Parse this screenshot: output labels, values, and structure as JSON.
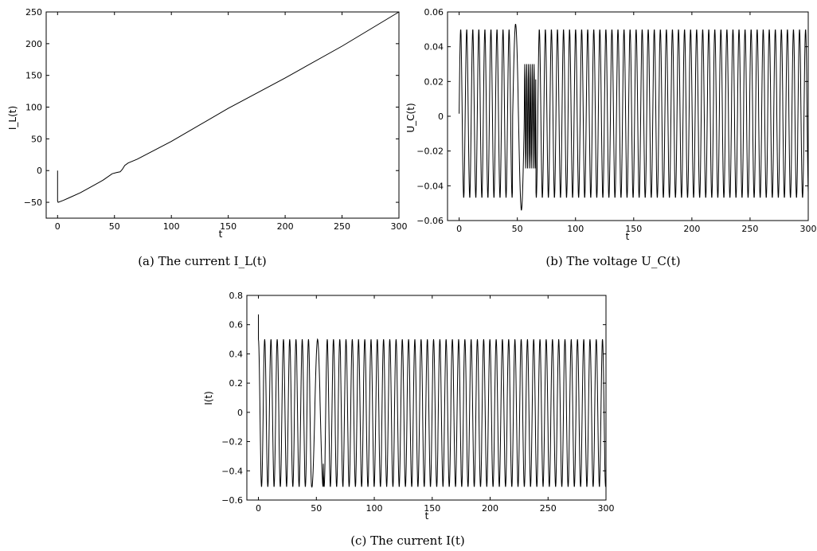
{
  "chart_data": [
    {
      "type": "line",
      "caption": "(a) The current I_L(t)",
      "xlabel": "t",
      "ylabel": "I_L(t)",
      "xlim": [
        -10,
        300
      ],
      "ylim": [
        -75,
        250
      ],
      "xticks": [
        "0",
        "50",
        "100",
        "150",
        "200",
        "250",
        "300"
      ],
      "yticks": [
        "−50",
        "0",
        "50",
        "100",
        "150",
        "200",
        "250"
      ],
      "series": [
        {
          "style": "solid",
          "x": [
            0,
            0,
            0.5,
            5,
            10,
            20,
            30,
            40,
            48,
            52,
            55,
            57,
            59,
            62,
            70,
            100,
            150,
            200,
            250,
            300
          ],
          "y": [
            0,
            -48,
            -50,
            -47,
            -43,
            -35,
            -25,
            -15,
            -5,
            -3,
            -2,
            2,
            8,
            12,
            18,
            46,
            98,
            146,
            196,
            250
          ]
        }
      ]
    },
    {
      "type": "line",
      "caption": "(b) The voltage U_C(t)",
      "xlabel": "t",
      "ylabel": "U_C(t)",
      "xlim": [
        -10,
        300
      ],
      "ylim": [
        -0.06,
        0.06
      ],
      "xticks": [
        "0",
        "50",
        "100",
        "150",
        "200",
        "250",
        "300"
      ],
      "yticks": [
        "−0.06",
        "−0.04",
        "−0.02",
        "0",
        "0.02",
        "0.04",
        "0.06"
      ],
      "oscillation": {
        "amplitude_top": 0.05,
        "amplitude_bottom": -0.047,
        "period": 5.2,
        "x_start": 0,
        "x_end": 300
      },
      "disturbance": {
        "x_start": 46,
        "x_end": 66,
        "peak": 0.053,
        "trough": -0.054
      }
    },
    {
      "type": "line",
      "caption": "(c) The current I(t)",
      "xlabel": "t",
      "ylabel": "I(t)",
      "xlim": [
        -10,
        300
      ],
      "ylim": [
        -0.6,
        0.8
      ],
      "xticks": [
        "0",
        "50",
        "100",
        "150",
        "200",
        "250",
        "300"
      ],
      "yticks": [
        "−0.6",
        "−0.4",
        "−0.2",
        "0",
        "0.2",
        "0.4",
        "0.6",
        "0.8"
      ],
      "oscillation": {
        "amplitude_top": 0.5,
        "amplitude_bottom": -0.51,
        "period": 5.4,
        "x_start": 0,
        "x_end": 300
      },
      "initial_spike": 0.67,
      "disturbance": {
        "x_start": 46,
        "x_end": 56
      }
    }
  ]
}
